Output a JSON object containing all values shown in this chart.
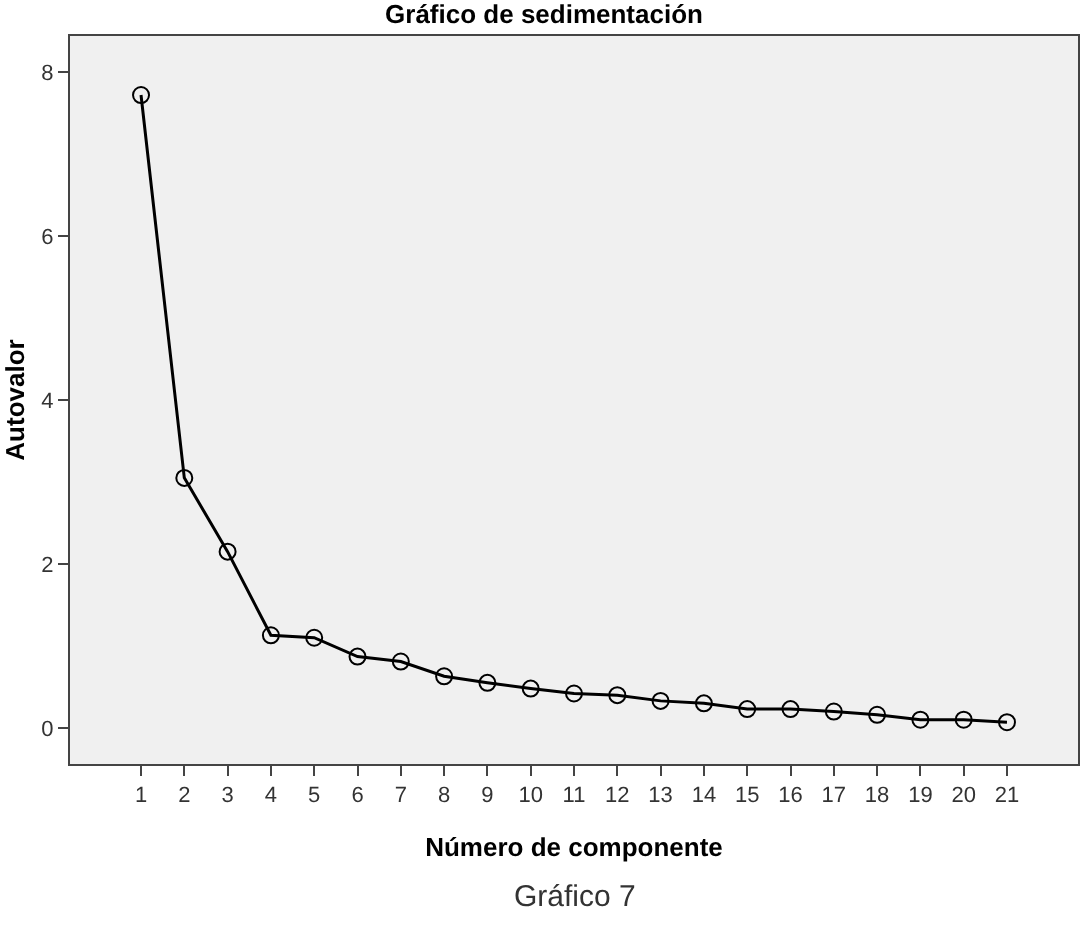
{
  "chart_data": {
    "type": "line",
    "title": "Gráfico de sedimentación",
    "xlabel": "Número de componente",
    "ylabel": "Autovalor",
    "x": [
      1,
      2,
      3,
      4,
      5,
      6,
      7,
      8,
      9,
      10,
      11,
      12,
      13,
      14,
      15,
      16,
      17,
      18,
      19,
      20,
      21
    ],
    "series": [
      {
        "color": "#000000",
        "values": [
          7.72,
          3.05,
          2.15,
          1.13,
          1.1,
          0.87,
          0.81,
          0.63,
          0.55,
          0.48,
          0.42,
          0.4,
          0.33,
          0.3,
          0.23,
          0.23,
          0.2,
          0.16,
          0.1,
          0.1,
          0.07
        ]
      }
    ],
    "xlim": [
      -0.64,
      22.64
    ],
    "xticks": [
      1,
      2,
      3,
      4,
      5,
      6,
      7,
      8,
      9,
      10,
      11,
      12,
      13,
      14,
      15,
      16,
      17,
      18,
      19,
      20,
      21
    ],
    "ylim": [
      -0.44,
      8.44
    ],
    "yticks": [
      0,
      2,
      4,
      6,
      8
    ],
    "marker": "circle",
    "line_style": "solid",
    "grid": false,
    "legend": false,
    "annotations": [
      "Gráfico 7"
    ]
  }
}
